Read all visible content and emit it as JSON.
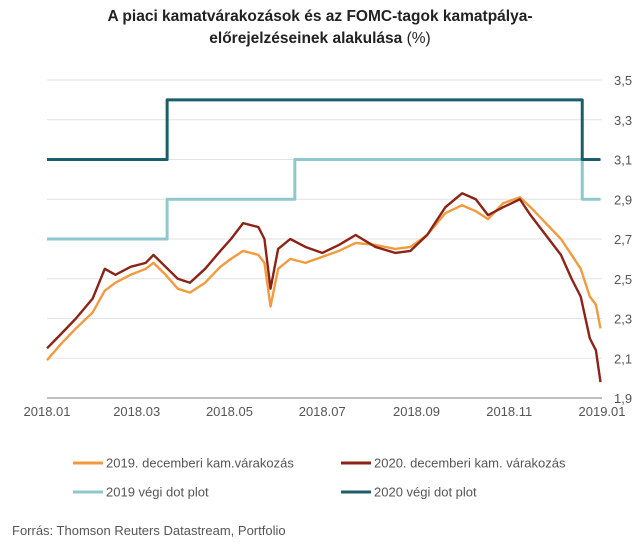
{
  "title": {
    "line1": "A piaci kamatvárakozások és az FOMC-tagok kamatpálya-",
    "line2_bold": "előrejelzéseinek alakulása",
    "line2_unit": " (%)"
  },
  "source": "Forrás: Thomson Reuters Datastream, Portfolio",
  "chart_data": {
    "type": "line",
    "title": "A piaci kamatvárakozások és az FOMC-tagok kamatpálya-előrejelzéseinek alakulása (%)",
    "xlabel": "",
    "ylabel": "",
    "x_ticks": [
      "2018.01",
      "2018.03",
      "2018.05",
      "2018.07",
      "2018.09",
      "2018.11",
      "2019.01"
    ],
    "xlim": [
      "2018.01",
      "2019.01"
    ],
    "y_ticks": [
      "1,9",
      "2,1",
      "2,3",
      "2,5",
      "2,7",
      "2,9",
      "3,1",
      "3,3",
      "3,5"
    ],
    "ylim": [
      1.9,
      3.5
    ],
    "grid": "horizontal",
    "legend_position": "bottom",
    "series": [
      {
        "name": "2019. decemberi kam.várakozás",
        "color": "#f29a3e",
        "style": "line",
        "points": [
          [
            "2018-01-01",
            2.09
          ],
          [
            "2018-01-10",
            2.17
          ],
          [
            "2018-01-20",
            2.25
          ],
          [
            "2018-01-31",
            2.33
          ],
          [
            "2018-02-08",
            2.44
          ],
          [
            "2018-02-15",
            2.48
          ],
          [
            "2018-02-25",
            2.52
          ],
          [
            "2018-03-07",
            2.55
          ],
          [
            "2018-03-12",
            2.58
          ],
          [
            "2018-03-20",
            2.52
          ],
          [
            "2018-03-28",
            2.45
          ],
          [
            "2018-04-05",
            2.43
          ],
          [
            "2018-04-15",
            2.48
          ],
          [
            "2018-04-25",
            2.56
          ],
          [
            "2018-05-02",
            2.6
          ],
          [
            "2018-05-10",
            2.64
          ],
          [
            "2018-05-20",
            2.62
          ],
          [
            "2018-05-24",
            2.58
          ],
          [
            "2018-05-28",
            2.36
          ],
          [
            "2018-06-02",
            2.55
          ],
          [
            "2018-06-10",
            2.6
          ],
          [
            "2018-06-20",
            2.58
          ],
          [
            "2018-07-01",
            2.61
          ],
          [
            "2018-07-12",
            2.64
          ],
          [
            "2018-07-23",
            2.68
          ],
          [
            "2018-08-05",
            2.67
          ],
          [
            "2018-08-18",
            2.65
          ],
          [
            "2018-08-28",
            2.66
          ],
          [
            "2018-09-08",
            2.72
          ],
          [
            "2018-09-20",
            2.83
          ],
          [
            "2018-10-01",
            2.87
          ],
          [
            "2018-10-10",
            2.84
          ],
          [
            "2018-10-18",
            2.8
          ],
          [
            "2018-10-28",
            2.88
          ],
          [
            "2018-11-08",
            2.91
          ],
          [
            "2018-11-15",
            2.86
          ],
          [
            "2018-11-25",
            2.78
          ],
          [
            "2018-12-05",
            2.7
          ],
          [
            "2018-12-12",
            2.62
          ],
          [
            "2018-12-18",
            2.55
          ],
          [
            "2018-12-24",
            2.41
          ],
          [
            "2018-12-28",
            2.37
          ],
          [
            "2018-12-31",
            2.25
          ]
        ]
      },
      {
        "name": "2020. decemberi kam. várakozás",
        "color": "#8b2317",
        "style": "line",
        "points": [
          [
            "2018-01-01",
            2.15
          ],
          [
            "2018-01-10",
            2.22
          ],
          [
            "2018-01-20",
            2.3
          ],
          [
            "2018-01-31",
            2.4
          ],
          [
            "2018-02-08",
            2.55
          ],
          [
            "2018-02-15",
            2.52
          ],
          [
            "2018-02-25",
            2.56
          ],
          [
            "2018-03-07",
            2.58
          ],
          [
            "2018-03-12",
            2.62
          ],
          [
            "2018-03-20",
            2.56
          ],
          [
            "2018-03-28",
            2.5
          ],
          [
            "2018-04-05",
            2.48
          ],
          [
            "2018-04-15",
            2.55
          ],
          [
            "2018-04-25",
            2.64
          ],
          [
            "2018-05-02",
            2.7
          ],
          [
            "2018-05-10",
            2.78
          ],
          [
            "2018-05-20",
            2.76
          ],
          [
            "2018-05-24",
            2.7
          ],
          [
            "2018-05-28",
            2.45
          ],
          [
            "2018-06-02",
            2.65
          ],
          [
            "2018-06-10",
            2.7
          ],
          [
            "2018-06-20",
            2.66
          ],
          [
            "2018-07-01",
            2.63
          ],
          [
            "2018-07-12",
            2.67
          ],
          [
            "2018-07-23",
            2.72
          ],
          [
            "2018-08-05",
            2.66
          ],
          [
            "2018-08-18",
            2.63
          ],
          [
            "2018-08-28",
            2.64
          ],
          [
            "2018-09-08",
            2.72
          ],
          [
            "2018-09-20",
            2.86
          ],
          [
            "2018-10-01",
            2.93
          ],
          [
            "2018-10-10",
            2.9
          ],
          [
            "2018-10-18",
            2.82
          ],
          [
            "2018-10-28",
            2.86
          ],
          [
            "2018-11-08",
            2.9
          ],
          [
            "2018-11-15",
            2.82
          ],
          [
            "2018-11-25",
            2.72
          ],
          [
            "2018-12-05",
            2.62
          ],
          [
            "2018-12-12",
            2.5
          ],
          [
            "2018-12-18",
            2.41
          ],
          [
            "2018-12-24",
            2.2
          ],
          [
            "2018-12-28",
            2.14
          ],
          [
            "2018-12-31",
            1.98
          ]
        ]
      },
      {
        "name": "2019 végi dot plot",
        "color": "#8fc8cc",
        "style": "step",
        "points": [
          [
            "2018-01-01",
            2.7
          ],
          [
            "2018-03-21",
            2.9
          ],
          [
            "2018-06-13",
            3.1
          ],
          [
            "2018-12-19",
            2.9
          ],
          [
            "2018-12-31",
            2.9
          ]
        ]
      },
      {
        "name": "2020 végi dot plot",
        "color": "#1b5e6b",
        "style": "step",
        "points": [
          [
            "2018-01-01",
            3.1
          ],
          [
            "2018-03-21",
            3.4
          ],
          [
            "2018-12-19",
            3.1
          ],
          [
            "2018-12-31",
            3.1
          ]
        ]
      }
    ]
  }
}
